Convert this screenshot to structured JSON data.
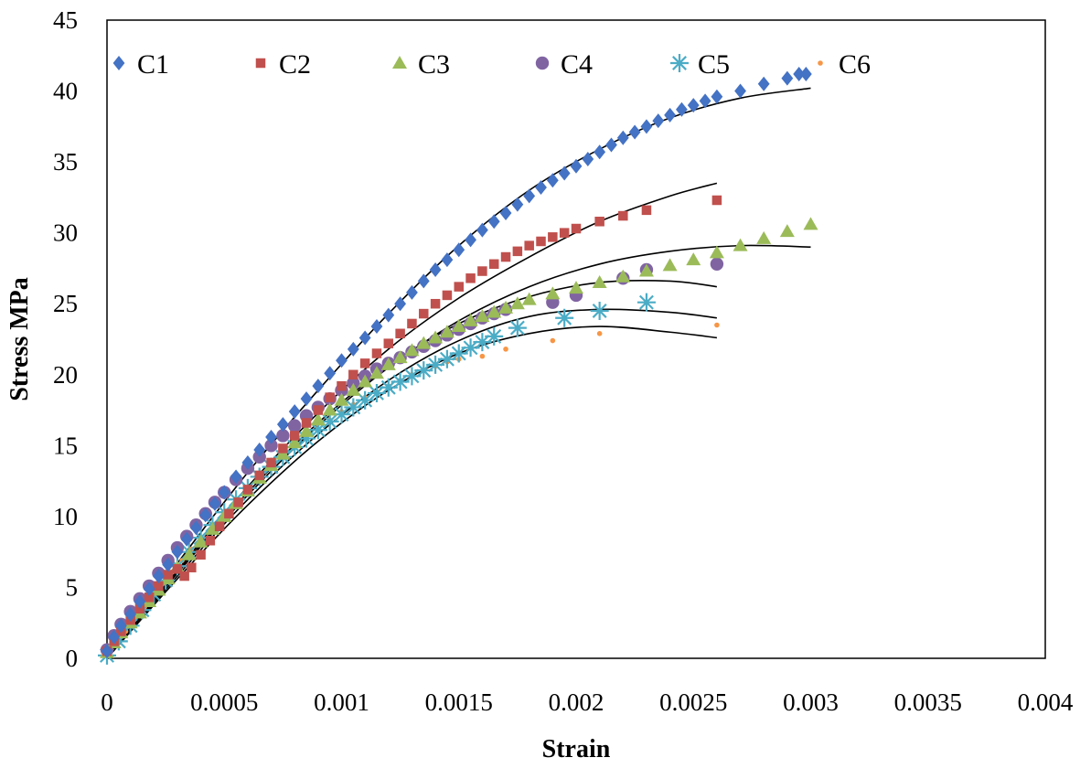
{
  "chart_data": {
    "type": "scatter",
    "title": "",
    "xlabel": "Strain",
    "ylabel": "Stress MPa",
    "xlim": [
      0,
      0.004
    ],
    "ylim": [
      0,
      45
    ],
    "x_ticks": [
      "0",
      "0.0005",
      "0.001",
      "0.0015",
      "0.002",
      "0.0025",
      "0.003",
      "0.0035",
      "0.004"
    ],
    "y_ticks": [
      "0",
      "5",
      "10",
      "15",
      "20",
      "25",
      "30",
      "35",
      "40",
      "45"
    ],
    "grid": false,
    "legend_position": "top",
    "series": [
      {
        "name": "C1",
        "marker": "diamond",
        "color": "#4472C4",
        "x": [
          0,
          3e-05,
          6e-05,
          0.0001,
          0.00014,
          0.00018,
          0.00022,
          0.00026,
          0.0003,
          0.00034,
          0.00038,
          0.00042,
          0.00046,
          0.0005,
          0.00055,
          0.0006,
          0.00065,
          0.0007,
          0.00075,
          0.0008,
          0.00085,
          0.0009,
          0.00095,
          0.001,
          0.00105,
          0.0011,
          0.00115,
          0.0012,
          0.00125,
          0.0013,
          0.00135,
          0.0014,
          0.00145,
          0.0015,
          0.00155,
          0.0016,
          0.00165,
          0.0017,
          0.00175,
          0.0018,
          0.00185,
          0.0019,
          0.00195,
          0.002,
          0.00205,
          0.0021,
          0.00215,
          0.0022,
          0.00225,
          0.0023,
          0.00235,
          0.0024,
          0.00245,
          0.0025,
          0.00255,
          0.0026,
          0.0027,
          0.0028,
          0.0029,
          0.00295,
          0.00298
        ],
        "y": [
          0.5,
          1.5,
          2.3,
          3.1,
          4.0,
          4.9,
          5.8,
          6.6,
          7.5,
          8.4,
          9.2,
          10.1,
          10.9,
          11.7,
          12.8,
          13.8,
          14.7,
          15.6,
          16.5,
          17.4,
          18.3,
          19.2,
          20.1,
          21.0,
          21.8,
          22.6,
          23.4,
          24.2,
          25.0,
          25.8,
          26.6,
          27.4,
          28.1,
          28.8,
          29.5,
          30.2,
          30.8,
          31.4,
          32.0,
          32.6,
          33.2,
          33.7,
          34.2,
          34.7,
          35.2,
          35.7,
          36.2,
          36.7,
          37.1,
          37.5,
          37.9,
          38.3,
          38.7,
          39.0,
          39.3,
          39.6,
          40.0,
          40.5,
          40.9,
          41.2,
          41.2
        ],
        "fit": {
          "x": [
            0,
            0.0003,
            0.0006,
            0.0009,
            0.0012,
            0.0015,
            0.0018,
            0.0021,
            0.0024,
            0.0027,
            0.003
          ],
          "y": [
            0,
            6.7,
            13.1,
            18.9,
            24.3,
            29.1,
            33.0,
            35.9,
            38.1,
            39.5,
            40.2
          ]
        }
      },
      {
        "name": "C2",
        "marker": "square",
        "color": "#C0504D",
        "x": [
          0,
          3e-05,
          6e-05,
          0.0001,
          0.00014,
          0.00018,
          0.00022,
          0.00026,
          0.0003,
          0.00033,
          0.00036,
          0.0004,
          0.00044,
          0.00048,
          0.00052,
          0.00056,
          0.0006,
          0.00065,
          0.0007,
          0.00075,
          0.0008,
          0.00085,
          0.0009,
          0.00095,
          0.001,
          0.00105,
          0.0011,
          0.00115,
          0.0012,
          0.00125,
          0.0013,
          0.00135,
          0.0014,
          0.00145,
          0.0015,
          0.00155,
          0.0016,
          0.00165,
          0.0017,
          0.00175,
          0.0018,
          0.00185,
          0.0019,
          0.00195,
          0.002,
          0.0021,
          0.0022,
          0.0023,
          0.0026
        ],
        "y": [
          0.5,
          1.2,
          1.9,
          2.7,
          3.5,
          4.3,
          5.1,
          5.9,
          6.3,
          5.8,
          6.4,
          7.3,
          8.3,
          9.3,
          10.2,
          11.0,
          11.9,
          12.9,
          13.8,
          14.8,
          15.7,
          16.6,
          17.5,
          18.4,
          19.2,
          20.0,
          20.8,
          21.5,
          22.2,
          22.9,
          23.6,
          24.3,
          25.0,
          25.6,
          26.2,
          26.8,
          27.3,
          27.8,
          28.3,
          28.7,
          29.1,
          29.4,
          29.7,
          30.0,
          30.3,
          30.8,
          31.2,
          31.6,
          32.3
        ],
        "fit": {
          "x": [
            0,
            0.0003,
            0.0006,
            0.0009,
            0.0012,
            0.0015,
            0.0018,
            0.0021,
            0.0024,
            0.0026
          ],
          "y": [
            0,
            6.2,
            12.1,
            17.3,
            21.8,
            25.4,
            28.3,
            30.8,
            32.6,
            33.5
          ]
        }
      },
      {
        "name": "C3",
        "marker": "triangle",
        "color": "#9BBB59",
        "x": [
          0,
          3e-05,
          6e-05,
          0.0001,
          0.00014,
          0.00018,
          0.00022,
          0.00026,
          0.0003,
          0.00035,
          0.0004,
          0.00045,
          0.0005,
          0.00055,
          0.0006,
          0.00065,
          0.0007,
          0.00075,
          0.0008,
          0.00085,
          0.0009,
          0.00095,
          0.001,
          0.00105,
          0.0011,
          0.00115,
          0.0012,
          0.00125,
          0.0013,
          0.00135,
          0.0014,
          0.00145,
          0.0015,
          0.00155,
          0.0016,
          0.00165,
          0.0017,
          0.00175,
          0.0018,
          0.0019,
          0.002,
          0.0021,
          0.0022,
          0.0023,
          0.0024,
          0.0025,
          0.0026,
          0.0027,
          0.0028,
          0.0029,
          0.003
        ],
        "y": [
          0.4,
          1.1,
          1.8,
          2.5,
          3.2,
          4.0,
          4.8,
          5.6,
          6.4,
          7.3,
          8.2,
          9.1,
          10.0,
          10.9,
          11.8,
          12.7,
          13.6,
          14.4,
          15.2,
          16.0,
          16.8,
          17.5,
          18.2,
          18.9,
          19.5,
          20.1,
          20.7,
          21.2,
          21.7,
          22.2,
          22.6,
          23.0,
          23.4,
          23.8,
          24.1,
          24.4,
          24.7,
          25.0,
          25.3,
          25.7,
          26.1,
          26.5,
          26.9,
          27.3,
          27.7,
          28.1,
          28.6,
          29.1,
          29.6,
          30.1,
          30.6
        ],
        "fit": {
          "x": [
            0,
            0.0003,
            0.0006,
            0.0009,
            0.0012,
            0.0015,
            0.0018,
            0.0021,
            0.0024,
            0.0027,
            0.003
          ],
          "y": [
            0,
            6.0,
            11.5,
            16.4,
            20.5,
            23.8,
            26.2,
            27.8,
            28.7,
            29.1,
            29.0
          ]
        }
      },
      {
        "name": "C4",
        "marker": "circle",
        "color": "#8064A2",
        "x": [
          0,
          3e-05,
          6e-05,
          0.0001,
          0.00014,
          0.00018,
          0.00022,
          0.00026,
          0.0003,
          0.00034,
          0.00038,
          0.00042,
          0.00046,
          0.0005,
          0.00055,
          0.0006,
          0.00065,
          0.0007,
          0.00075,
          0.0008,
          0.00085,
          0.0009,
          0.00095,
          0.001,
          0.00105,
          0.0011,
          0.00115,
          0.0012,
          0.00125,
          0.0013,
          0.00135,
          0.0014,
          0.00145,
          0.0015,
          0.00155,
          0.0016,
          0.00165,
          0.0017,
          0.0019,
          0.002,
          0.0022,
          0.0023,
          0.0026
        ],
        "y": [
          0.6,
          1.6,
          2.4,
          3.3,
          4.2,
          5.1,
          6.0,
          6.9,
          7.8,
          8.6,
          9.4,
          10.2,
          11.0,
          11.7,
          12.6,
          13.4,
          14.2,
          15.0,
          15.7,
          16.4,
          17.1,
          17.7,
          18.3,
          18.9,
          19.4,
          19.9,
          20.4,
          20.8,
          21.2,
          21.6,
          22.0,
          22.4,
          22.8,
          23.2,
          23.6,
          24.0,
          24.3,
          24.6,
          25.1,
          25.6,
          26.8,
          27.4,
          27.8
        ],
        "fit": {
          "x": [
            0,
            0.0003,
            0.0006,
            0.0009,
            0.0012,
            0.0015,
            0.0018,
            0.0021,
            0.0024,
            0.0026
          ],
          "y": [
            0,
            6.1,
            11.7,
            16.6,
            20.6,
            23.6,
            25.5,
            26.5,
            26.6,
            26.2
          ]
        }
      },
      {
        "name": "C5",
        "marker": "star",
        "color": "#4BACC6",
        "x": [
          0,
          5e-05,
          0.0001,
          0.00015,
          0.0002,
          0.00025,
          0.0003,
          0.00035,
          0.0004,
          0.00045,
          0.0005,
          0.00055,
          0.0006,
          0.00065,
          0.0007,
          0.00075,
          0.0008,
          0.00085,
          0.0009,
          0.00095,
          0.001,
          0.00105,
          0.0011,
          0.00115,
          0.0012,
          0.00125,
          0.0013,
          0.00135,
          0.0014,
          0.00145,
          0.0015,
          0.00155,
          0.0016,
          0.00165,
          0.00175,
          0.00195,
          0.0021,
          0.0023
        ],
        "y": [
          0.2,
          1.2,
          2.3,
          3.4,
          4.5,
          5.5,
          6.5,
          7.5,
          8.5,
          9.4,
          10.3,
          11.2,
          12.0,
          12.8,
          13.5,
          14.2,
          14.9,
          15.5,
          16.1,
          16.7,
          17.2,
          17.7,
          18.2,
          18.7,
          19.1,
          19.5,
          19.9,
          20.3,
          20.7,
          21.1,
          21.5,
          21.9,
          22.3,
          22.7,
          23.3,
          24.0,
          24.5,
          25.1
        ],
        "fit": {
          "x": [
            0,
            0.0003,
            0.0006,
            0.0009,
            0.0012,
            0.0015,
            0.0018,
            0.0021,
            0.0024,
            0.0026
          ],
          "y": [
            0,
            5.8,
            11.2,
            15.8,
            19.6,
            22.4,
            24.1,
            24.6,
            24.4,
            24.0
          ]
        }
      },
      {
        "name": "C6",
        "marker": "dot",
        "color": "#F79646",
        "x": [
          0,
          4e-05,
          8e-05,
          0.00012,
          0.00016,
          0.0002,
          0.00024,
          0.00028,
          0.00032,
          0.00036,
          0.0004,
          0.00045,
          0.0005,
          0.00055,
          0.0006,
          0.00065,
          0.0007,
          0.00075,
          0.0008,
          0.00085,
          0.0009,
          0.00095,
          0.001,
          0.00105,
          0.0011,
          0.00115,
          0.0012,
          0.00125,
          0.0013,
          0.00135,
          0.0014,
          0.00145,
          0.0015,
          0.0016,
          0.0017,
          0.0019,
          0.0021,
          0.0026
        ],
        "y": [
          0.3,
          1.1,
          1.9,
          2.8,
          3.6,
          4.5,
          5.3,
          6.1,
          6.9,
          7.7,
          8.5,
          9.4,
          10.3,
          11.1,
          11.9,
          12.7,
          13.5,
          14.2,
          14.9,
          15.6,
          16.2,
          16.8,
          17.4,
          17.9,
          18.4,
          18.8,
          19.2,
          19.6,
          20.0,
          20.3,
          20.6,
          20.9,
          21.1,
          21.3,
          21.8,
          22.4,
          22.9,
          23.5
        ],
        "fit": {
          "x": [
            0,
            0.0003,
            0.0006,
            0.0009,
            0.0012,
            0.0015,
            0.0018,
            0.0021,
            0.0024,
            0.0026
          ],
          "y": [
            0,
            5.6,
            10.8,
            15.3,
            18.9,
            21.5,
            22.9,
            23.4,
            23.0,
            22.6
          ]
        }
      }
    ]
  }
}
